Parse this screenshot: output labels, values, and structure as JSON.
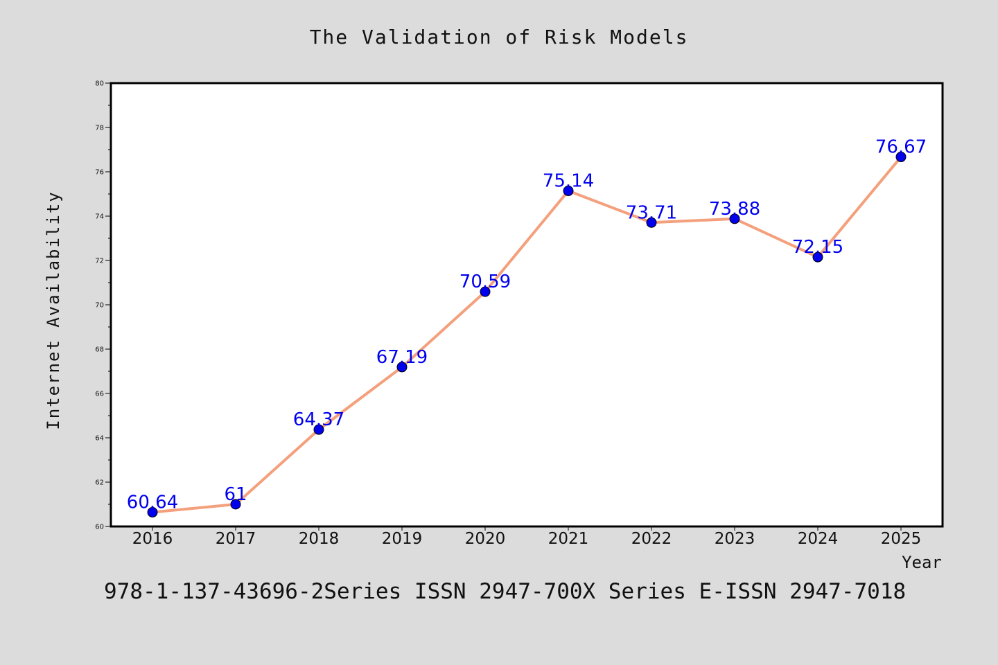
{
  "chart_data": {
    "type": "line",
    "title": "The Validation of Risk Models",
    "xlabel": "Year",
    "ylabel": "Internet Availability",
    "caption": "978-1-137-43696-2Series ISSN 2947-700X Series E-ISSN 2947-7018",
    "categories": [
      "2016",
      "2017",
      "2018",
      "2019",
      "2020",
      "2021",
      "2022",
      "2023",
      "2024",
      "2025"
    ],
    "series": [
      {
        "values": [
          60.64,
          61,
          64.37,
          67.19,
          70.59,
          75.14,
          73.71,
          73.88,
          72.15,
          76.67
        ],
        "labels": [
          "60.64",
          "61",
          "64.37",
          "67.19",
          "70.59",
          "75.14",
          "73.71",
          "73.88",
          "72.15",
          "76.67"
        ]
      }
    ],
    "ylim": [
      60,
      80
    ],
    "yticks": [
      "60",
      "62",
      "64",
      "66",
      "68",
      "70",
      "72",
      "74",
      "76",
      "78",
      "80"
    ],
    "grid": false,
    "line_color": "#f4a07c",
    "marker_color": "#0000ee",
    "label_color": "#0000ee",
    "background_color": "#dcdcdc",
    "plot_background_color": "#ffffff"
  }
}
